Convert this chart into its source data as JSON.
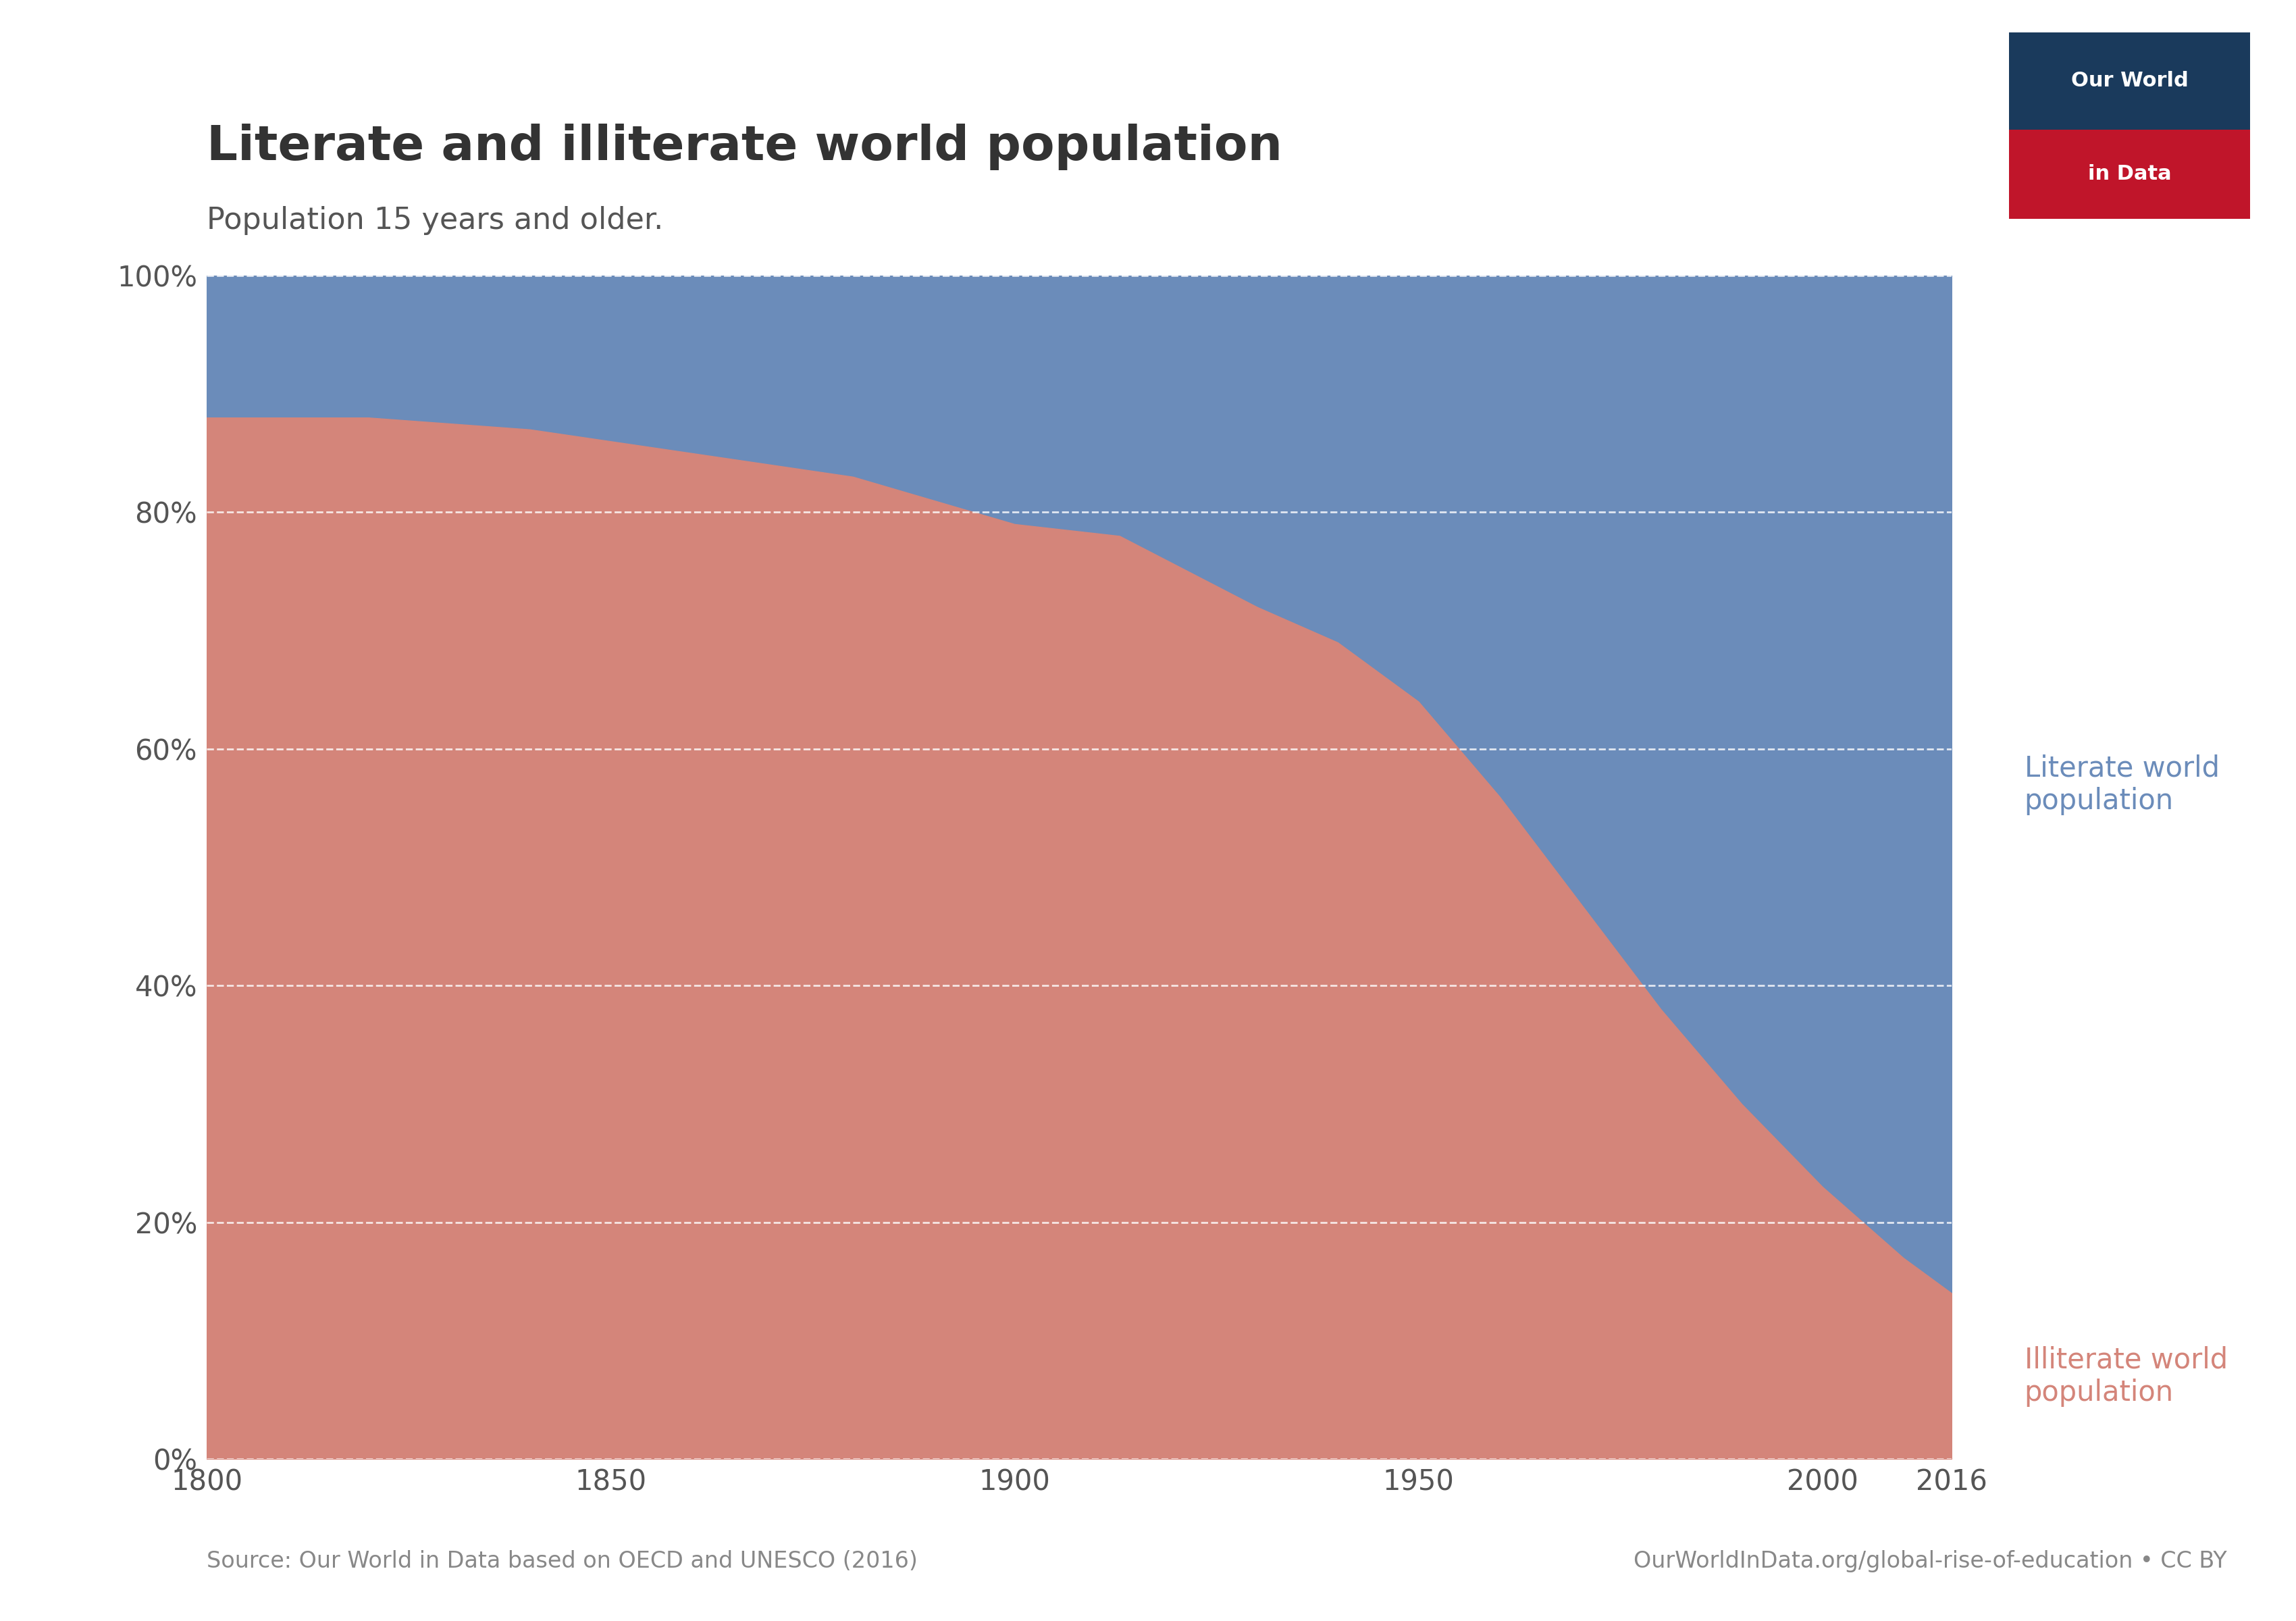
{
  "title": "Literate and illiterate world population",
  "subtitle": "Population 15 years and older.",
  "source_left": "Source: Our World in Data based on OECD and UNESCO (2016)",
  "source_right": "OurWorldInData.org/global-rise-of-education • CC BY",
  "literate_label": "Literate world\npopulation",
  "illiterate_label": "Illiterate world\npopulation",
  "literate_color": "#6b8cba",
  "illiterate_color": "#d4857a",
  "background_color": "#ffffff",
  "years": [
    1800,
    1820,
    1840,
    1860,
    1880,
    1900,
    1913,
    1930,
    1940,
    1950,
    1960,
    1970,
    1980,
    1990,
    2000,
    2010,
    2016
  ],
  "illiterate_pct": [
    88,
    88,
    87,
    85,
    83,
    79,
    78,
    72,
    69,
    64,
    56,
    47,
    38,
    30,
    23,
    17,
    14
  ],
  "xlim": [
    1800,
    2016
  ],
  "ylim": [
    0,
    100
  ],
  "yticks": [
    0,
    20,
    40,
    60,
    80,
    100
  ],
  "ytick_labels": [
    "0%",
    "20%",
    "40%",
    "60%",
    "80%",
    "100%"
  ],
  "xticks": [
    1800,
    1850,
    1900,
    1950,
    2000,
    2016
  ],
  "title_fontsize": 52,
  "subtitle_fontsize": 32,
  "tick_fontsize": 30,
  "label_fontsize": 30,
  "source_fontsize": 24,
  "title_color": "#333333",
  "subtitle_color": "#555555",
  "tick_color": "#555555",
  "source_color": "#888888",
  "grid_color": "#ffffff",
  "owid_red": "#c0152a",
  "owid_navy": "#1a3a5c",
  "owid_text": "#ffffff"
}
